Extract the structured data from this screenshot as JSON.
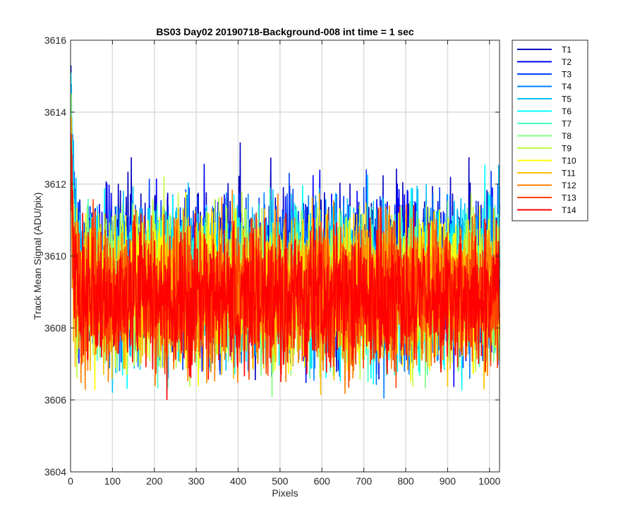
{
  "chart_data": {
    "type": "line",
    "title": "BS03 Day02 20190718-Background-008 int time = 1 sec",
    "xlabel": "Pixels",
    "ylabel": "Track Mean Signal (ADU/pix)",
    "xlim": [
      0,
      1024
    ],
    "ylim": [
      3604,
      3616
    ],
    "xticks": [
      0,
      100,
      200,
      300,
      400,
      500,
      600,
      700,
      800,
      900,
      1000
    ],
    "yticks": [
      3604,
      3606,
      3608,
      3610,
      3612,
      3614,
      3616
    ],
    "grid": true,
    "legend_position": "outside-top-right",
    "n_points": 1024,
    "series": [
      {
        "name": "T1",
        "color": "#0000c0",
        "mean": 3609.6,
        "spread": 1.15,
        "first": 3615.3
      },
      {
        "name": "T2",
        "color": "#0000ff",
        "mean": 3609.5,
        "spread": 1.1,
        "first": 3615.0
      },
      {
        "name": "T3",
        "color": "#0040ff",
        "mean": 3609.4,
        "spread": 1.1,
        "first": 3614.6
      },
      {
        "name": "T4",
        "color": "#0080ff",
        "mean": 3609.3,
        "spread": 1.05,
        "first": 3614.2
      },
      {
        "name": "T5",
        "color": "#00c0ff",
        "mean": 3609.3,
        "spread": 1.05,
        "first": 3614.0
      },
      {
        "name": "T6",
        "color": "#00ffff",
        "mean": 3609.2,
        "spread": 1.05,
        "first": 3615.1
      },
      {
        "name": "T7",
        "color": "#40ffbf",
        "mean": 3609.2,
        "spread": 1.0,
        "first": 3613.8
      },
      {
        "name": "T8",
        "color": "#80ff80",
        "mean": 3609.1,
        "spread": 1.0,
        "first": 3613.5
      },
      {
        "name": "T9",
        "color": "#bfff40",
        "mean": 3609.1,
        "spread": 1.0,
        "first": 3613.2
      },
      {
        "name": "T10",
        "color": "#ffff00",
        "mean": 3609.0,
        "spread": 1.0,
        "first": 3613.0
      },
      {
        "name": "T11",
        "color": "#ffbf00",
        "mean": 3609.0,
        "spread": 1.0,
        "first": 3612.6
      },
      {
        "name": "T12",
        "color": "#ff8000",
        "mean": 3608.9,
        "spread": 1.0,
        "first": 3612.4
      },
      {
        "name": "T13",
        "color": "#ff4000",
        "mean": 3608.9,
        "spread": 0.95,
        "first": 3612.8
      },
      {
        "name": "T14",
        "color": "#ff0000",
        "mean": 3608.9,
        "spread": 0.95,
        "first": 3613.4
      }
    ]
  }
}
